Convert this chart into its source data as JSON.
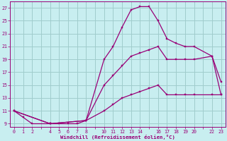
{
  "xlabel": "Windchill (Refroidissement éolien,°C)",
  "background_color": "#c8eef0",
  "grid_color": "#a0cccc",
  "line_color": "#990077",
  "x_ticks": [
    0,
    1,
    2,
    4,
    5,
    6,
    7,
    8,
    10,
    11,
    12,
    13,
    14,
    16,
    17,
    18,
    19,
    20,
    22,
    23
  ],
  "ylim": [
    8.5,
    28.0
  ],
  "xlim": [
    -0.5,
    23.5
  ],
  "y_ticks": [
    9,
    11,
    13,
    15,
    17,
    19,
    21,
    23,
    25,
    27
  ],
  "line1_x": [
    0,
    1,
    2,
    4,
    5,
    6,
    7,
    8,
    10,
    11,
    12,
    13,
    14,
    15,
    16,
    17,
    18,
    19,
    20,
    22,
    23
  ],
  "line1_y": [
    11,
    10,
    9,
    9,
    9,
    9,
    9,
    9.5,
    19,
    21,
    24,
    26.7,
    27.2,
    27.2,
    25,
    22.2,
    21.5,
    21,
    21,
    19.5,
    15.5
  ],
  "line2_x": [
    0,
    4,
    8,
    10,
    11,
    12,
    13,
    14,
    15,
    16,
    17,
    18,
    19,
    20,
    22,
    23
  ],
  "line2_y": [
    11,
    9,
    9.5,
    15,
    16.5,
    18,
    19.5,
    20,
    20.5,
    21,
    19,
    19,
    19,
    19,
    19.5,
    13.5
  ],
  "line3_x": [
    0,
    4,
    8,
    10,
    11,
    12,
    13,
    14,
    15,
    16,
    17,
    18,
    19,
    20,
    22,
    23
  ],
  "line3_y": [
    11,
    9,
    9.5,
    11,
    12,
    13,
    13.5,
    14,
    14.5,
    15,
    13.5,
    13.5,
    13.5,
    13.5,
    13.5,
    13.5
  ]
}
